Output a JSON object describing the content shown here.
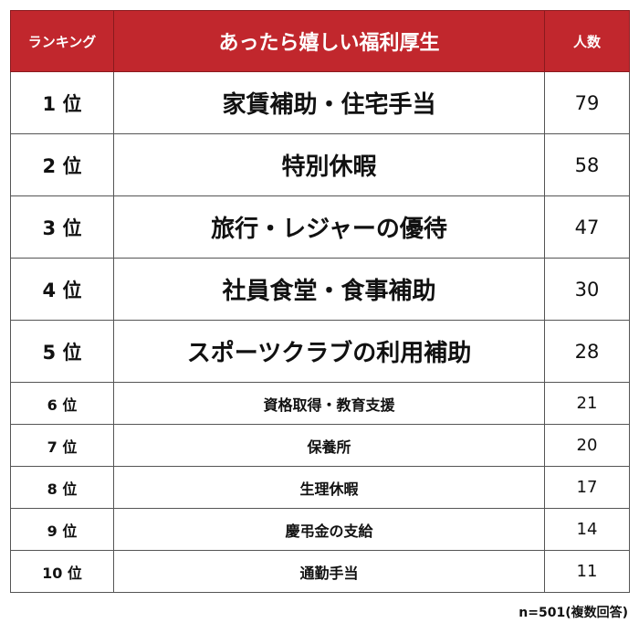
{
  "chart_data": {
    "type": "table",
    "title": "あったら嬉しい福利厚生",
    "columns": [
      "ランキング",
      "あったら嬉しい福利厚生",
      "人数"
    ],
    "rows": [
      {
        "rank": "1 位",
        "item": "家賃補助・住宅手当",
        "count": 79
      },
      {
        "rank": "2 位",
        "item": "特別休暇",
        "count": 58
      },
      {
        "rank": "3 位",
        "item": "旅行・レジャーの優待",
        "count": 47
      },
      {
        "rank": "4 位",
        "item": "社員食堂・食事補助",
        "count": 30
      },
      {
        "rank": "5 位",
        "item": "スポーツクラブの利用補助",
        "count": 28
      },
      {
        "rank": "6 位",
        "item": "資格取得・教育支援",
        "count": 21
      },
      {
        "rank": "7 位",
        "item": "保養所",
        "count": 20
      },
      {
        "rank": "8 位",
        "item": "生理休暇",
        "count": 17
      },
      {
        "rank": "9 位",
        "item": "慶弔金の支給",
        "count": 14
      },
      {
        "rank": "10 位",
        "item": "通勤手当",
        "count": 11
      }
    ],
    "header_color": "#c1272d",
    "footnote": "n=501(複数回答)"
  }
}
